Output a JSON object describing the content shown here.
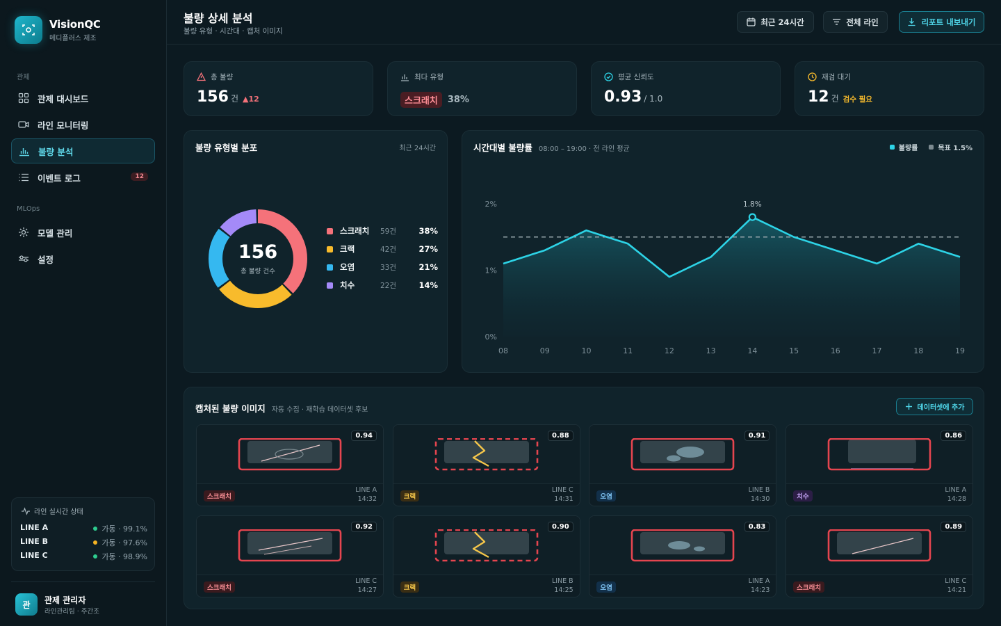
{
  "brand": {
    "name": "VisionQC",
    "sub": "메디플러스 제조"
  },
  "nav": {
    "section1": "관제",
    "items1": [
      {
        "label": "관제 대시보드",
        "icon": "dashboard-icon"
      },
      {
        "label": "라인 모니터링",
        "icon": "camera-icon"
      },
      {
        "label": "불량 분석",
        "icon": "bar-chart-icon",
        "active": true
      },
      {
        "label": "이벤트 로그",
        "icon": "list-icon",
        "badge": "12"
      }
    ],
    "section2": "MLOps",
    "items2": [
      {
        "label": "모델 관리",
        "icon": "model-icon"
      },
      {
        "label": "설정",
        "icon": "settings-icon"
      }
    ]
  },
  "line_status": {
    "title": "라인 실시간 상태",
    "lines": [
      {
        "name": "LINE A",
        "value": "가동 · 99.1%",
        "color": "#2ecc8f"
      },
      {
        "name": "LINE B",
        "value": "가동 · 97.6%",
        "color": "#f5b323"
      },
      {
        "name": "LINE C",
        "value": "가동 · 98.9%",
        "color": "#2ecc8f"
      }
    ]
  },
  "user": {
    "avatar": "관",
    "name": "관제 관리자",
    "role": "라인관리팀 · 주간조"
  },
  "header": {
    "title": "불량 상세 분석",
    "subtitle": "불량 유형 · 시간대 · 캡처 이미지",
    "btn_period": "최근 24시간",
    "btn_line": "전체 라인",
    "btn_export": "리포트 내보내기"
  },
  "kpis": {
    "total": {
      "label": "총 불량",
      "value": "156",
      "unit": "건",
      "delta": "▲12"
    },
    "top": {
      "label": "최다 유형",
      "tag": "스크래치",
      "pct": "38%"
    },
    "conf": {
      "label": "평균 신뢰도",
      "value": "0.93",
      "unit": "/ 1.0"
    },
    "review": {
      "label": "재검 대기",
      "value": "12",
      "unit": "건",
      "note": "검수 필요"
    }
  },
  "donut": {
    "title": "불량 유형별 분포",
    "meta": "최근 24시간",
    "center_value": "156",
    "center_label": "총 불량 건수"
  },
  "line_chart": {
    "title": "시간대별 불량률",
    "meta": "08:00 – 19:00 · 전 라인 평균",
    "legend_rate": "불량률",
    "legend_target": "목표 1.5%"
  },
  "chart_data": [
    {
      "type": "pie",
      "categories": [
        "스크래치",
        "크랙",
        "오염",
        "치수"
      ],
      "counts": [
        "59건",
        "42건",
        "33건",
        "22건"
      ],
      "values": [
        38,
        27,
        21,
        14
      ],
      "percent_labels": [
        "38%",
        "27%",
        "21%",
        "14%"
      ],
      "colors": [
        "#f5727a",
        "#f8bb2c",
        "#35b8f0",
        "#a48af8"
      ]
    },
    {
      "type": "area",
      "x": [
        "08",
        "09",
        "10",
        "11",
        "12",
        "13",
        "14",
        "15",
        "16",
        "17",
        "18",
        "19"
      ],
      "values": [
        1.1,
        1.3,
        1.6,
        1.4,
        0.9,
        1.2,
        1.8,
        1.5,
        1.3,
        1.1,
        1.4,
        1.2
      ],
      "peak_label": "1.8%",
      "target": 1.5,
      "ylim": [
        0,
        2
      ],
      "yticks": [
        "0%",
        "1%",
        "2%"
      ],
      "line_color": "#2dd3e6",
      "target_color": "#9aa8ae"
    }
  ],
  "gallery": {
    "title": "캡처된 불량 이미지",
    "meta": "자동 수집 · 재학습 데이터셋 후보",
    "add_btn": "데이터셋에 추가",
    "items": [
      {
        "tag": "스크래치",
        "kind": "scratch",
        "conf": "0.94",
        "line": "LINE A",
        "time": "14:32"
      },
      {
        "tag": "크랙",
        "kind": "crack",
        "conf": "0.88",
        "line": "LINE C",
        "time": "14:31"
      },
      {
        "tag": "오염",
        "kind": "stain",
        "conf": "0.91",
        "line": "LINE B",
        "time": "14:30"
      },
      {
        "tag": "치수",
        "kind": "dim",
        "conf": "0.86",
        "line": "LINE A",
        "time": "14:28"
      },
      {
        "tag": "스크래치",
        "kind": "scratch",
        "conf": "0.92",
        "line": "LINE C",
        "time": "14:27"
      },
      {
        "tag": "크랙",
        "kind": "crack",
        "conf": "0.90",
        "line": "LINE B",
        "time": "14:25"
      },
      {
        "tag": "오염",
        "kind": "stain",
        "conf": "0.83",
        "line": "LINE A",
        "time": "14:23"
      },
      {
        "tag": "스크래치",
        "kind": "scratch",
        "conf": "0.89",
        "line": "LINE C",
        "time": "14:21"
      }
    ]
  }
}
